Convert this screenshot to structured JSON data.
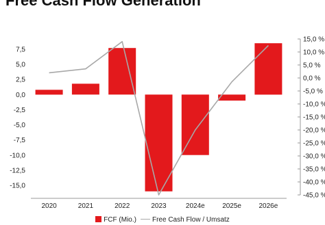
{
  "chart_data": {
    "type": "bar",
    "title": "Free Cash Flow Generation",
    "categories": [
      "2020",
      "2021",
      "2022",
      "2023",
      "2024e",
      "2025e",
      "2026e"
    ],
    "series": [
      {
        "name": "FCF (Mio.)",
        "type": "bar",
        "axis": "left",
        "values": [
          0.8,
          1.8,
          7.7,
          -16.0,
          -10.0,
          -1.0,
          8.5
        ],
        "color": "#e3191c"
      },
      {
        "name": "Free Cash Flow / Umsatz",
        "type": "line",
        "axis": "right",
        "values": [
          2.0,
          3.5,
          14.0,
          -45.0,
          -20.0,
          -1.5,
          12.5
        ],
        "color": "#a8a8a8"
      }
    ],
    "left_axis": {
      "min": -15.0,
      "max": 7.5,
      "ticks": [
        "-15,0",
        "-12,5",
        "-10,0",
        "-7,5",
        "-5,0",
        "-2,5",
        "0,0",
        "2,5",
        "5,0",
        "7,5"
      ]
    },
    "right_axis": {
      "min": -45,
      "max": 15,
      "ticks": [
        "-45,0 %",
        "-40,0 %",
        "-35,0 %",
        "-30,0 %",
        "-25,0 %",
        "-20,0 %",
        "-15,0 %",
        "-10,0 %",
        "-5,0 %",
        "0,0 %",
        "5,0 %",
        "10,0 %",
        "15,0 %"
      ]
    },
    "legend_position": "bottom",
    "grid": false
  }
}
